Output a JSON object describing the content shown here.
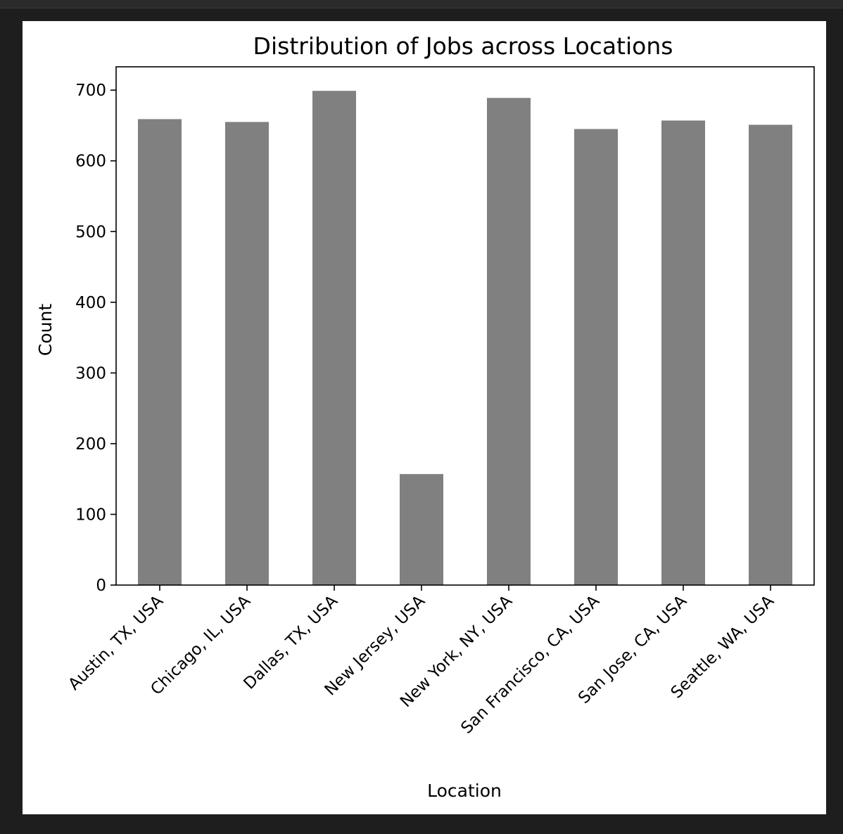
{
  "chart_data": {
    "type": "bar",
    "title": "Distribution of Jobs across Locations",
    "xlabel": "Location",
    "ylabel": "Count",
    "categories": [
      "Austin, TX, USA",
      "Chicago, IL, USA",
      "Dallas, TX, USA",
      "New Jersey, USA",
      "New York, NY, USA",
      "San Francisco, CA, USA",
      "San Jose, CA, USA",
      "Seattle, WA, USA"
    ],
    "values": [
      659,
      655,
      699,
      157,
      689,
      645,
      657,
      651
    ],
    "yticks": [
      0,
      100,
      200,
      300,
      400,
      500,
      600,
      700
    ],
    "ylim": [
      0,
      733
    ],
    "bar_color": "#808080",
    "grid": false,
    "legend": "none"
  }
}
